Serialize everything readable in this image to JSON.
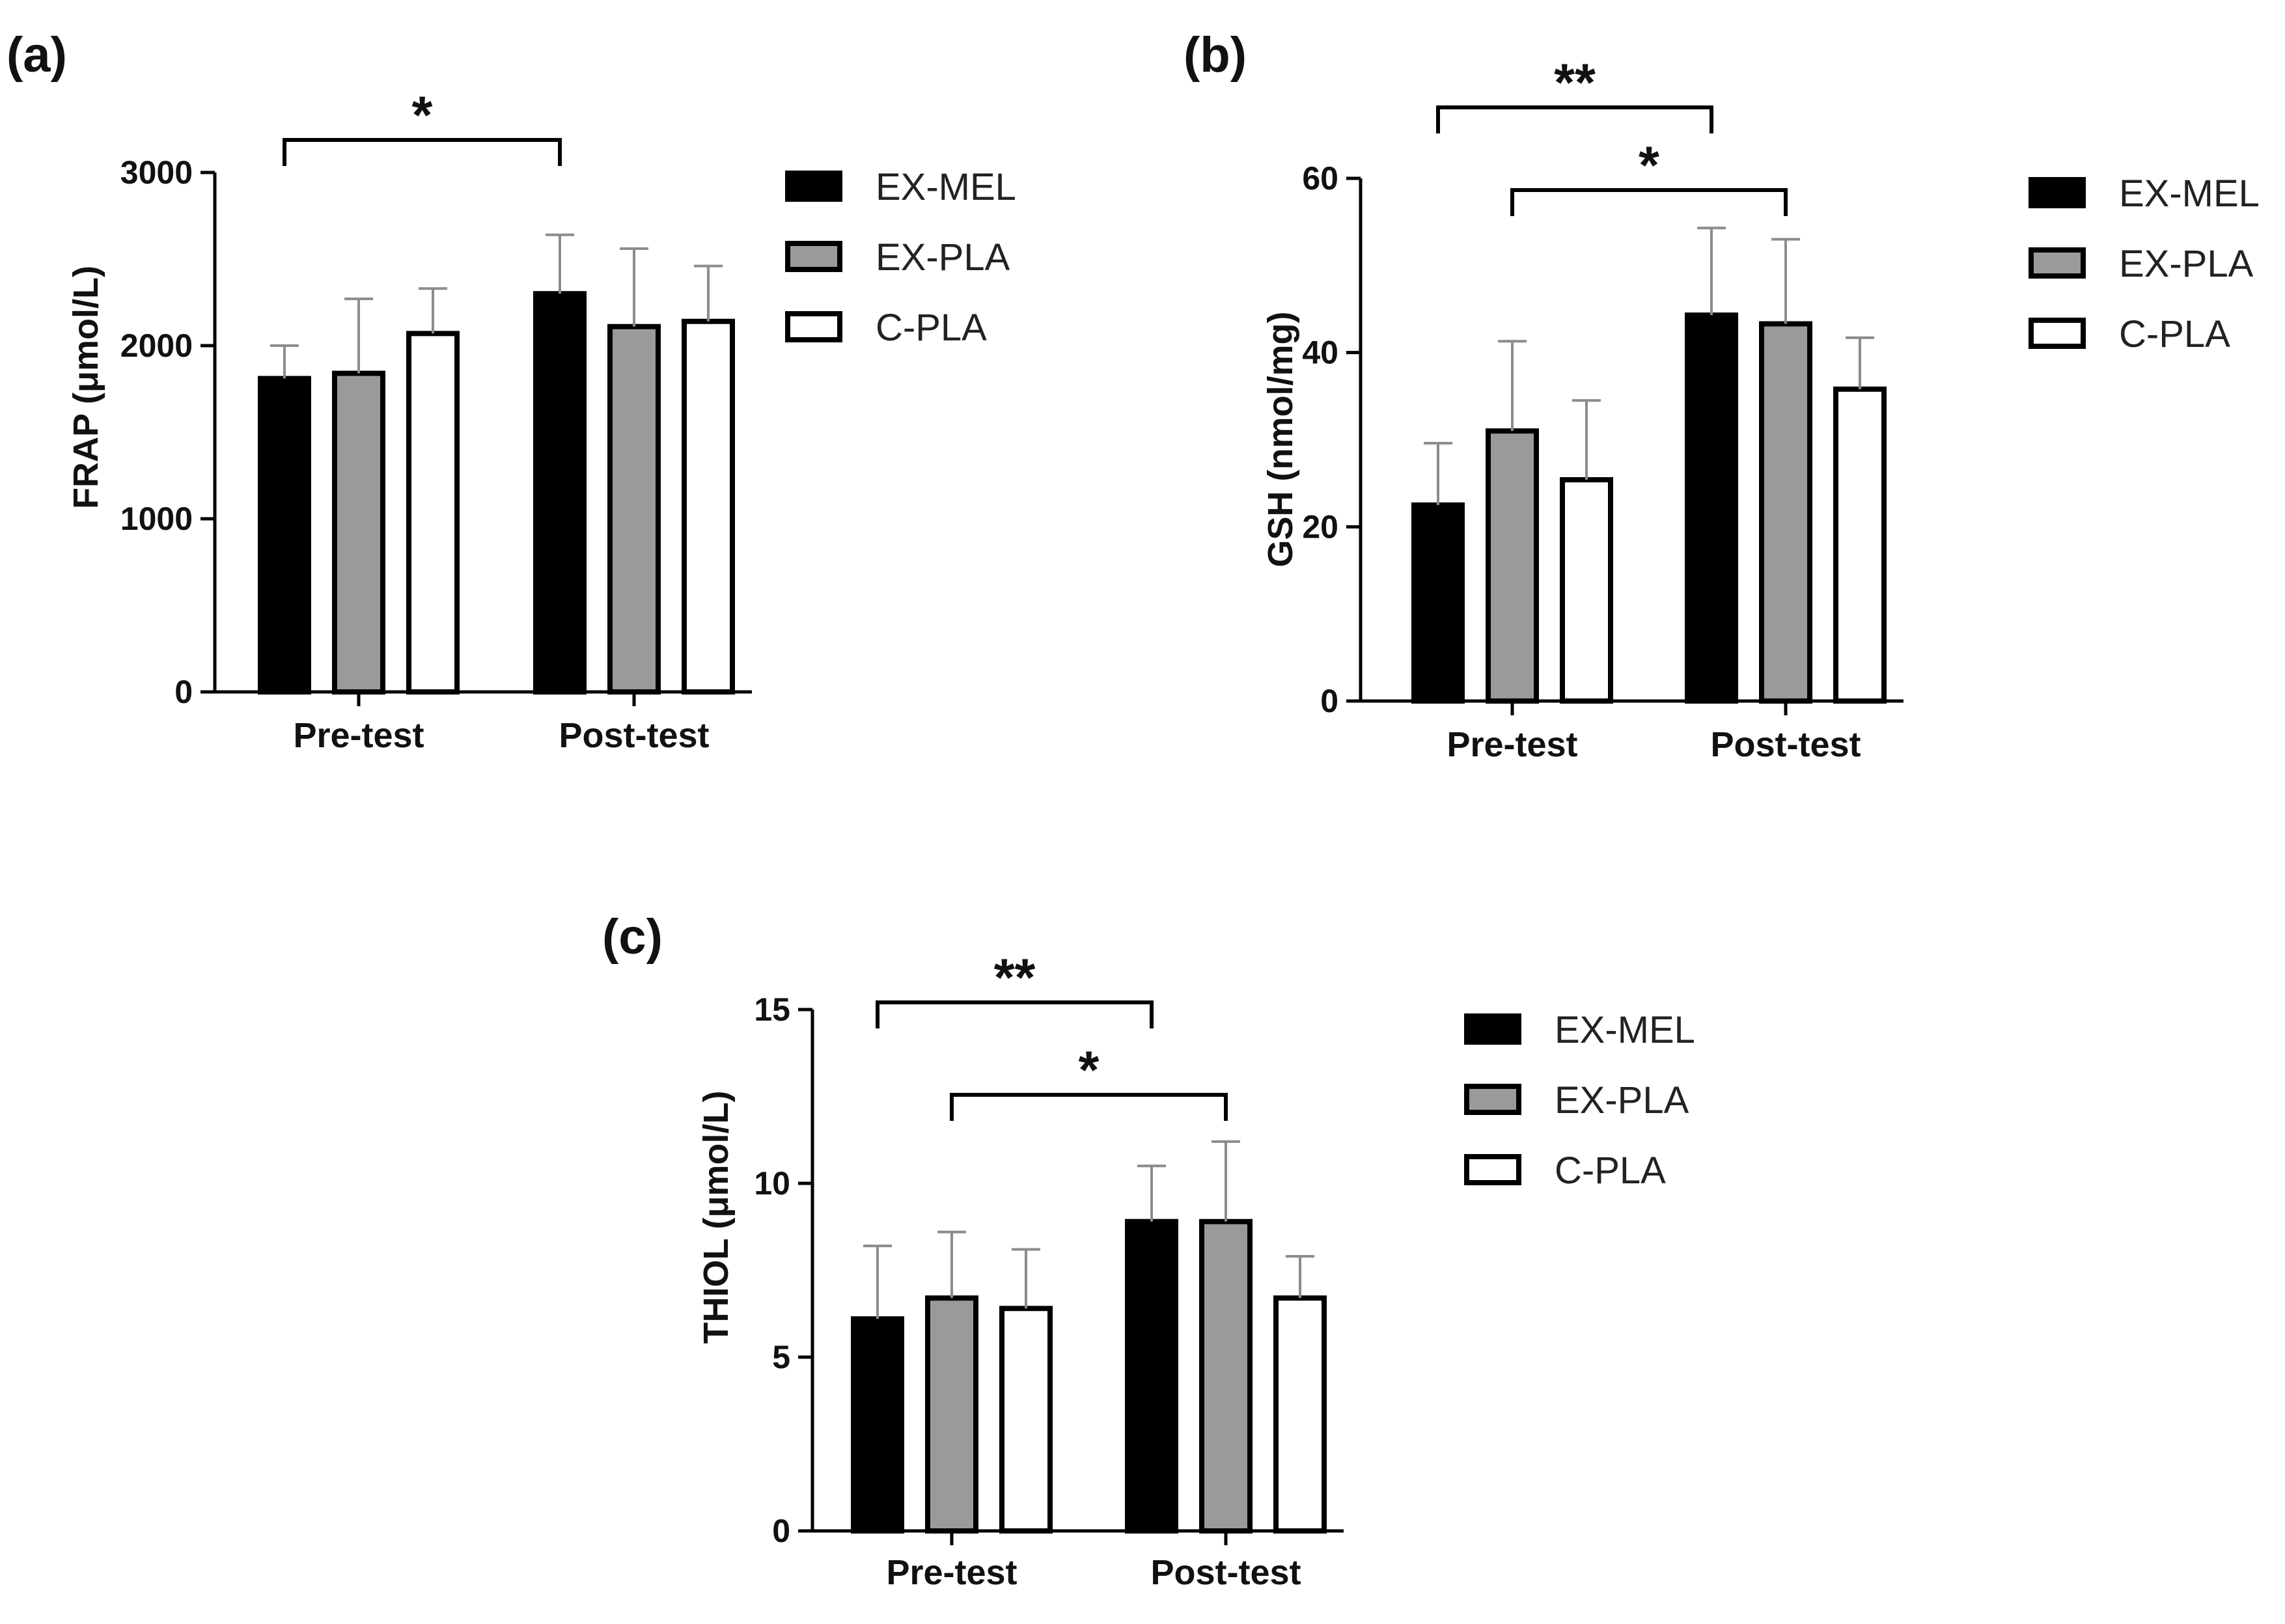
{
  "colors": {
    "ink": "#000000",
    "ex_mel": "#000000",
    "ex_pla": "#9a9a9a",
    "c_pla": "#ffffff",
    "error_bar": "#8c8c8c"
  },
  "chart_data": [
    {
      "type": "bar",
      "panel_label": "(a)",
      "ylabel": "FRAP (μmol/L)",
      "categories": [
        "Pre-test",
        "Post-test"
      ],
      "ylim": [
        0,
        3000
      ],
      "yticks": [
        0,
        1000,
        2000,
        3000
      ],
      "grid": false,
      "legend_position": "right",
      "series": [
        {
          "name": "EX-MEL",
          "values": [
            1810,
            2300
          ],
          "errors": [
            190,
            340
          ]
        },
        {
          "name": "EX-PLA",
          "values": [
            1840,
            2110
          ],
          "errors": [
            430,
            450
          ]
        },
        {
          "name": "C-PLA",
          "values": [
            2070,
            2140
          ],
          "errors": [
            260,
            320
          ]
        }
      ],
      "significance": [
        {
          "label": "*",
          "from": [
            0,
            0
          ],
          "to": [
            1,
            0
          ],
          "level": 0
        }
      ]
    },
    {
      "type": "bar",
      "panel_label": "(b)",
      "ylabel": "GSH (nmol/mg)",
      "categories": [
        "Pre-test",
        "Post-test"
      ],
      "ylim": [
        0,
        60
      ],
      "yticks": [
        0,
        20,
        40,
        60
      ],
      "grid": false,
      "legend_position": "right",
      "series": [
        {
          "name": "EX-MEL",
          "values": [
            22.5,
            44.3
          ],
          "errors": [
            7.1,
            10.0
          ]
        },
        {
          "name": "EX-PLA",
          "values": [
            31.0,
            43.3
          ],
          "errors": [
            10.3,
            9.7
          ]
        },
        {
          "name": "C-PLA",
          "values": [
            25.4,
            35.8
          ],
          "errors": [
            9.1,
            5.9
          ]
        }
      ],
      "significance": [
        {
          "label": "**",
          "from": [
            0,
            0
          ],
          "to": [
            1,
            0
          ],
          "level": 1
        },
        {
          "label": "*",
          "from": [
            0,
            1
          ],
          "to": [
            1,
            1
          ],
          "level": 0
        }
      ]
    },
    {
      "type": "bar",
      "panel_label": "(c)",
      "ylabel": "THIOL (μmol/L)",
      "categories": [
        "Pre-test",
        "Post-test"
      ],
      "ylim": [
        0,
        15
      ],
      "yticks": [
        0,
        5,
        10,
        15
      ],
      "grid": false,
      "legend_position": "right",
      "series": [
        {
          "name": "EX-MEL",
          "values": [
            6.1,
            8.9
          ],
          "errors": [
            2.1,
            1.6
          ]
        },
        {
          "name": "EX-PLA",
          "values": [
            6.7,
            8.9
          ],
          "errors": [
            1.9,
            2.3
          ]
        },
        {
          "name": "C-PLA",
          "values": [
            6.4,
            6.7
          ],
          "errors": [
            1.7,
            1.2
          ]
        }
      ],
      "significance": [
        {
          "label": "**",
          "from": [
            0,
            0
          ],
          "to": [
            1,
            0
          ],
          "level": 1
        },
        {
          "label": "*",
          "from": [
            0,
            1
          ],
          "to": [
            1,
            1
          ],
          "level": 0
        }
      ]
    }
  ]
}
